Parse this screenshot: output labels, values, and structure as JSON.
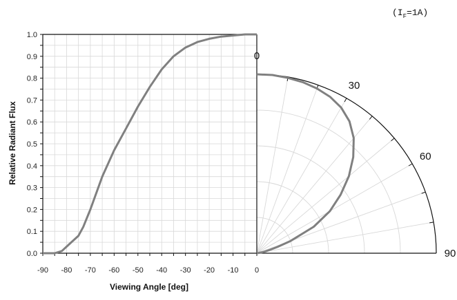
{
  "chart_data": {
    "type": "line",
    "condition_label": {
      "main": "(I",
      "sub": "F",
      "rest": "=1A)"
    },
    "ylabel": "Relative Radiant Flux",
    "xlabel": "Viewing Angle [deg]",
    "ylim": [
      0,
      1.0
    ],
    "xlim": [
      -90,
      0
    ],
    "grid": true,
    "y_ticks": [
      "0.0",
      "0.1",
      "0.2",
      "0.3",
      "0.4",
      "0.5",
      "0.6",
      "0.7",
      "0.8",
      "0.9",
      "1.0"
    ],
    "x_ticks": [
      "-90",
      "-80",
      "-70",
      "-60",
      "-50",
      "-40",
      "-30",
      "-20",
      "-10",
      "0"
    ],
    "polar_angle_labels": [
      "0",
      "30",
      "60",
      "90"
    ],
    "series": [
      {
        "color": "#808080",
        "x": [
          -90,
          -85,
          -82,
          -80,
          -78,
          -75,
          -73,
          -70,
          -65,
          -60,
          -55,
          -50,
          -45,
          -40,
          -35,
          -30,
          -25,
          -20,
          -15,
          -10,
          -5,
          0
        ],
        "y": [
          0.0,
          0.0,
          0.01,
          0.03,
          0.05,
          0.08,
          0.12,
          0.2,
          0.35,
          0.47,
          0.57,
          0.67,
          0.76,
          0.84,
          0.9,
          0.94,
          0.965,
          0.98,
          0.99,
          0.995,
          1.0,
          1.0
        ]
      }
    ]
  }
}
